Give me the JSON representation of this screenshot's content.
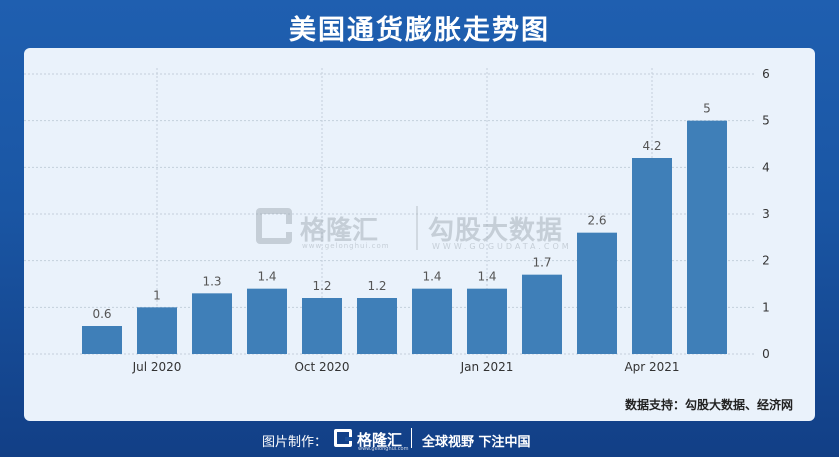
{
  "title": "美国通货膨胀走势图",
  "source": "数据支持：勾股大数据、经济网",
  "watermark": {
    "brand": "格隆汇",
    "brand_sub": "www.gelonghui.com",
    "text": "勾股大数据",
    "text_sub": "WWW.GOGUDATA.COM"
  },
  "footer": {
    "made_label": "图片制作：",
    "brand": "格隆汇",
    "brand_sub": "www.gelonghui.com",
    "slogan": "全球视野 下注中国"
  },
  "colors": {
    "bar": "#3f7fb8",
    "grid": "#c4cfdb",
    "label": "#555555",
    "axis_text": "#333333"
  },
  "chart_data": {
    "type": "bar",
    "categories": [
      "2020-06",
      "2020-07",
      "2020-08",
      "2020-09",
      "2020-10",
      "2020-11",
      "2020-12",
      "2021-01",
      "2021-02",
      "2021-03",
      "2021-04",
      "2021-05"
    ],
    "values": [
      0.6,
      1,
      1.3,
      1.4,
      1.2,
      1.2,
      1.4,
      1.4,
      1.7,
      2.6,
      4.2,
      5
    ],
    "data_labels": [
      "0.6",
      "1",
      "1.3",
      "1.4",
      "1.2",
      "1.2",
      "1.4",
      "1.4",
      "1.7",
      "2.6",
      "4.2",
      "5"
    ],
    "x_ticks": [
      {
        "index": 1,
        "label": "Jul 2020"
      },
      {
        "index": 4,
        "label": "Oct 2020"
      },
      {
        "index": 7,
        "label": "Jan 2021"
      },
      {
        "index": 10,
        "label": "Apr 2021"
      }
    ],
    "y_ticks": [
      "0",
      "1",
      "2",
      "3",
      "4",
      "5",
      "6"
    ],
    "ylim": [
      0,
      6
    ],
    "y_axis_side": "right",
    "grid": true,
    "legend": "none",
    "title": "",
    "xlabel": "",
    "ylabel": ""
  }
}
